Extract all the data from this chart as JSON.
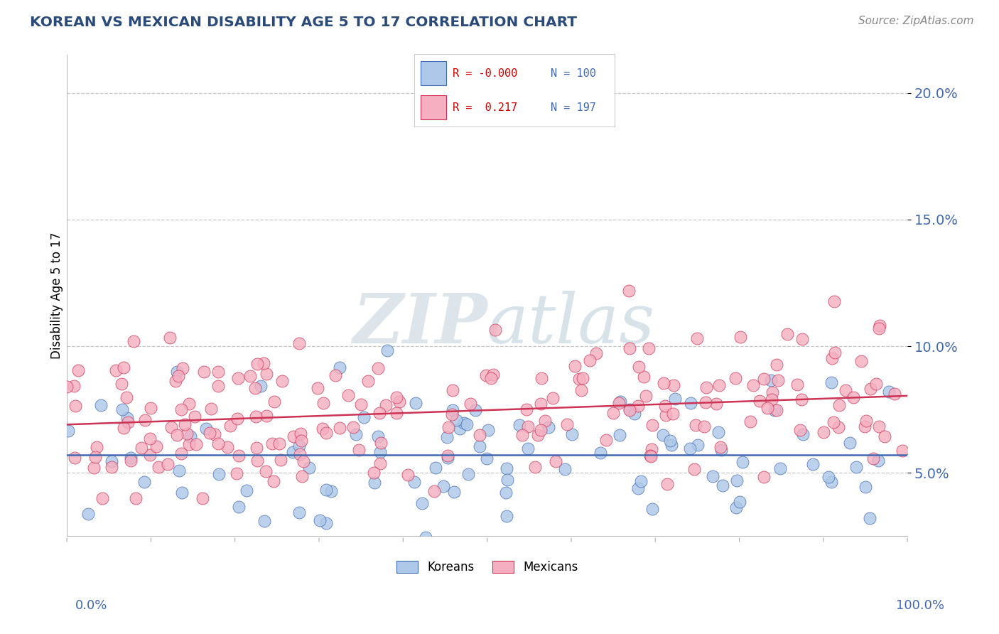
{
  "title": "KOREAN VS MEXICAN DISABILITY AGE 5 TO 17 CORRELATION CHART",
  "source": "Source: ZipAtlas.com",
  "ylabel": "Disability Age 5 to 17",
  "ytick_values": [
    0.05,
    0.1,
    0.15,
    0.2
  ],
  "xmin": 0.0,
  "xmax": 1.0,
  "ymin": 0.025,
  "ymax": 0.215,
  "korean_R": -0.0,
  "korean_N": 100,
  "mexican_R": 0.217,
  "mexican_N": 197,
  "korean_color": "#adc8e8",
  "mexican_color": "#f5afc0",
  "korean_line_color": "#4169b0",
  "mexican_line_color": "#cc3355",
  "legend_label_korean": "Koreans",
  "legend_label_mexican": "Mexicans",
  "watermark_zip": "ZIP",
  "watermark_atlas": "atlas",
  "watermark_color_zip": "#c8d8e8",
  "watermark_color_atlas": "#b0c8d8",
  "title_color": "#2a4a7a",
  "axis_label_color": "#4169b0",
  "source_color": "#888888",
  "grid_color": "#c8c8c8",
  "background_color": "#ffffff",
  "legend_R_color": "#cc0000",
  "legend_N_color": "#4169b0"
}
